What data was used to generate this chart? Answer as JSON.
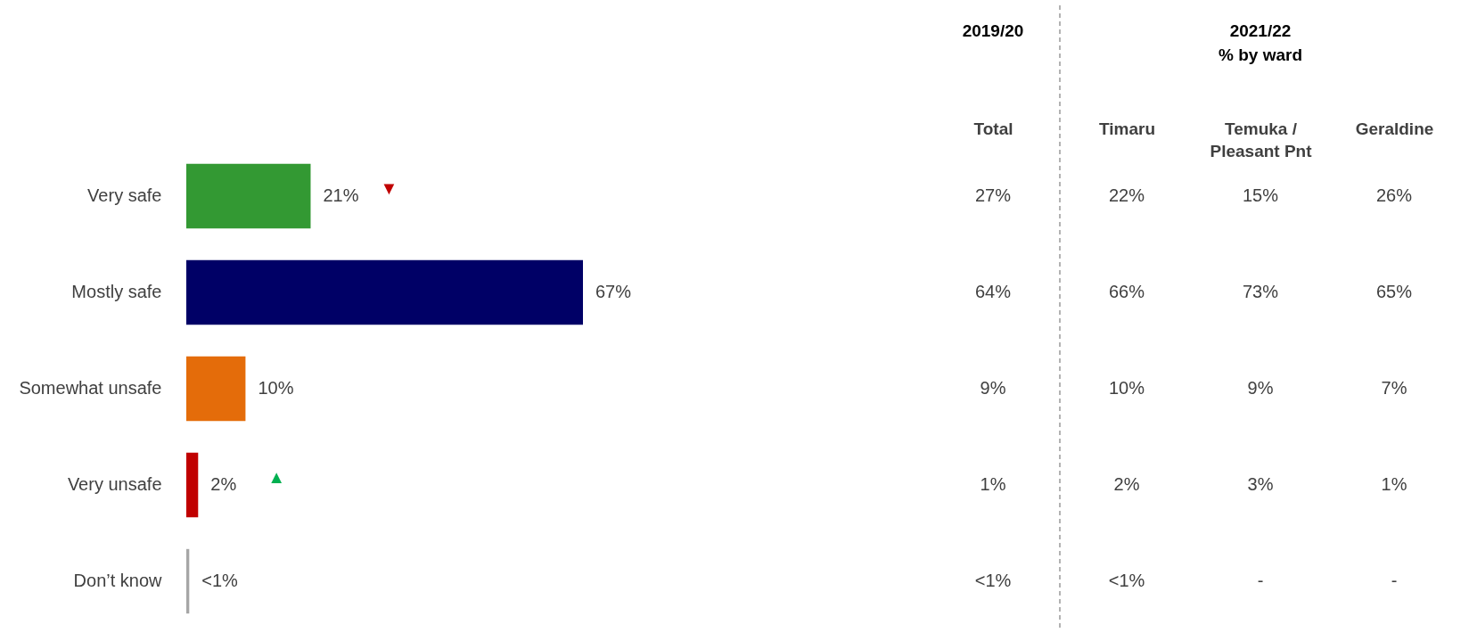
{
  "chart_data": [
    {
      "type": "bar",
      "orientation": "horizontal",
      "tick_labels": "y",
      "categories": [
        "Very safe",
        "Mostly safe",
        "Somewhat unsafe",
        "Very unsafe",
        "Don’t know"
      ],
      "values": [
        21,
        67,
        10,
        2,
        0.5
      ],
      "colors": [
        "#339933",
        "#000066",
        "#e46c0a",
        "#c00000",
        "#a6a6a6"
      ],
      "value_labels": [
        "21%",
        "67%",
        "10%",
        "2%",
        "<1%"
      ],
      "annotations": [
        "▼",
        "▲"
      ]
    },
    {
      "type": "other",
      "categories": [
        "Total",
        "Timaru",
        "Temuka / Pleasant Pnt",
        "Geraldine"
      ],
      "series": [
        {
          "values": [
            27,
            22,
            15,
            26
          ],
          "value_labels": [
            "27%",
            "22%",
            "15%",
            "26%"
          ]
        },
        {
          "values": [
            64,
            66,
            73,
            65
          ],
          "value_labels": [
            "64%",
            "66%",
            "73%",
            "65%"
          ]
        },
        {
          "values": [
            9,
            10,
            9,
            7
          ],
          "value_labels": [
            "9%",
            "10%",
            "9%",
            "7%"
          ]
        },
        {
          "values": [
            1,
            2,
            3,
            1
          ],
          "value_labels": [
            "1%",
            "2%",
            "3%",
            "1%"
          ]
        },
        {
          "values": [
            null,
            null,
            null,
            null
          ],
          "value_labels": [
            "<1%",
            "<1%",
            "-",
            "-"
          ]
        }
      ],
      "annotations": [
        "2019/20",
        "2021/22\n% by ward"
      ]
    }
  ]
}
